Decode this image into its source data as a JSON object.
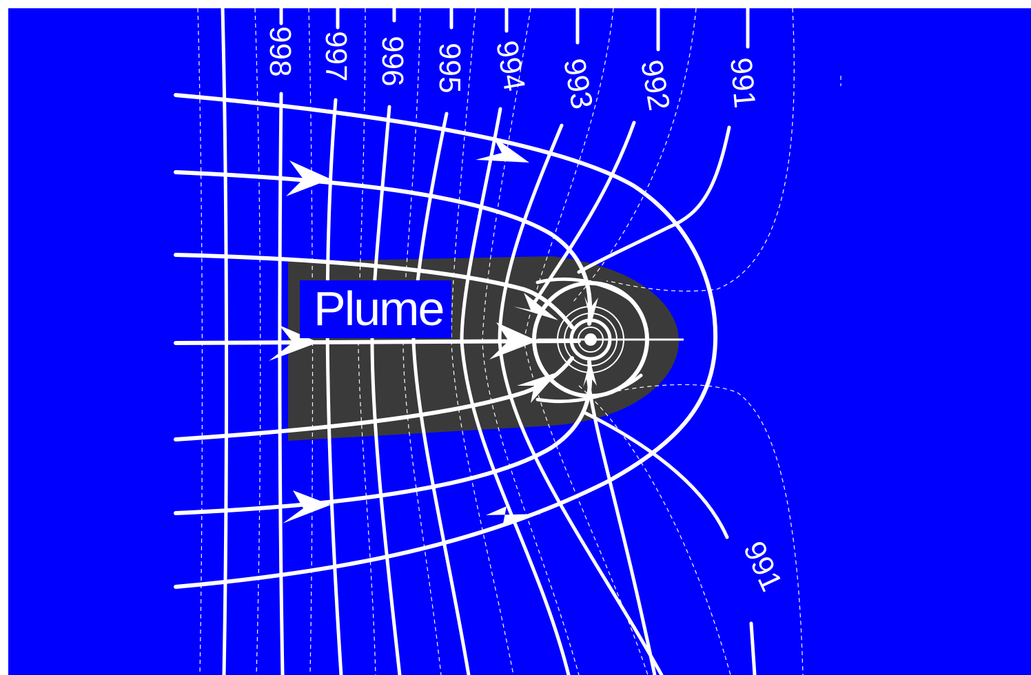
{
  "diagram": {
    "label": "Plume",
    "head_contours": [
      "998",
      "997",
      "996",
      "995",
      "994",
      "993",
      "992",
      "991"
    ],
    "lower_contour": "991",
    "colors": {
      "aquifer": "#0000ff",
      "plume": "#3a3a3a",
      "lines": "#ffffff",
      "frame": "#ffffff"
    },
    "icons": {
      "flow-arrow": "arrowhead",
      "well": "concentric-rings"
    }
  }
}
